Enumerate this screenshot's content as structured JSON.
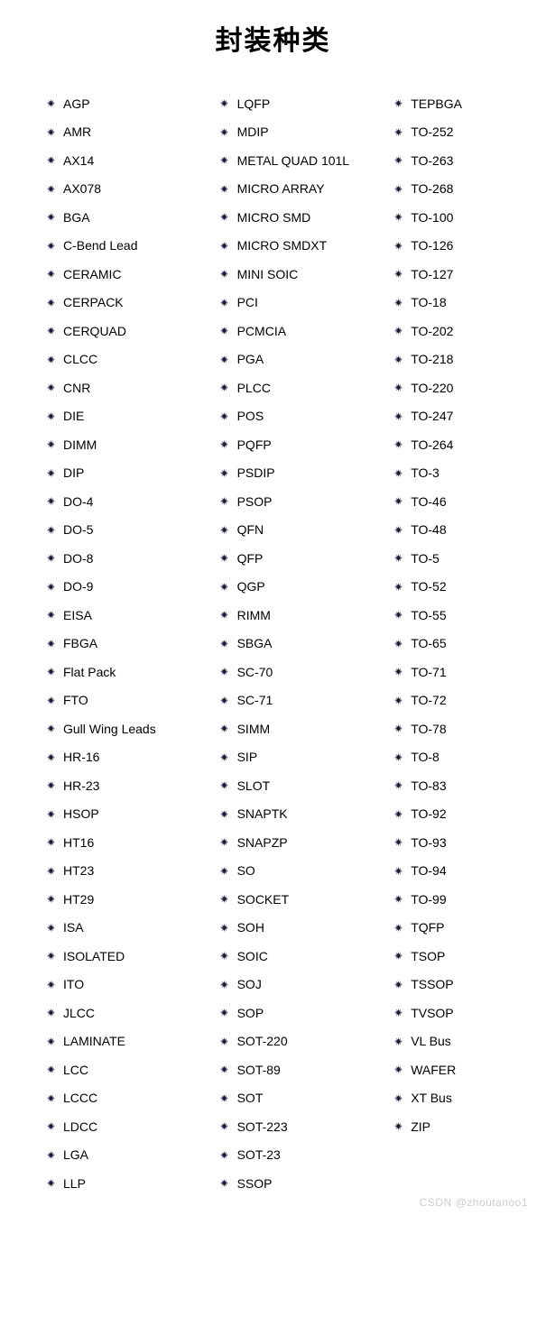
{
  "title": "封装种类",
  "title_fontsize": 30,
  "title_color": "#000000",
  "background_color": "#ffffff",
  "text_color": "#000000",
  "bullet_color": "#1a1b3a",
  "item_fontsize": 14,
  "row_height": 31.5,
  "columns": [
    {
      "items": [
        "AGP",
        "AMR",
        "AX14",
        "AX078",
        "BGA",
        "C-Bend Lead",
        "CERAMIC",
        "CERPACK",
        "CERQUAD",
        "CLCC",
        "CNR",
        "DIE",
        "DIMM",
        "DIP",
        "DO-4",
        "DO-5",
        "DO-8",
        "DO-9",
        "EISA",
        "FBGA",
        "Flat Pack",
        "FTO",
        "Gull Wing Leads",
        "HR-16",
        "HR-23",
        "HSOP",
        "HT16",
        "HT23",
        "HT29",
        "ISA",
        "ISOLATED",
        "ITO",
        "JLCC",
        "LAMINATE",
        "LCC",
        "LCCC",
        "LDCC",
        "LGA",
        "LLP"
      ]
    },
    {
      "items": [
        "LQFP",
        "MDIP",
        "METAL QUAD 101L",
        "MICRO ARRAY",
        "MICRO SMD",
        "MICRO SMDXT",
        "MINI SOIC",
        "PCI",
        "PCMCIA",
        "PGA",
        "PLCC",
        "POS",
        "PQFP",
        "PSDIP",
        "PSOP",
        "QFN",
        "QFP",
        "QGP",
        "RIMM",
        "SBGA",
        "SC-70",
        "SC-71",
        "SIMM",
        "SIP",
        "SLOT",
        "SNAPTK",
        "SNAPZP",
        "SO",
        "SOCKET",
        "SOH",
        "SOIC",
        "SOJ",
        "SOP",
        "SOT-220",
        "SOT-89",
        "SOT",
        "SOT-223",
        "SOT-23",
        "SSOP"
      ]
    },
    {
      "items": [
        "TEPBGA",
        "TO-252",
        "TO-263",
        "TO-268",
        "TO-100",
        "TO-126",
        "TO-127",
        "TO-18",
        "TO-202",
        "TO-218",
        "TO-220",
        "TO-247",
        "TO-264",
        "TO-3",
        "TO-46",
        "TO-48",
        "TO-5",
        "TO-52",
        "TO-55",
        "TO-65",
        "TO-71",
        "TO-72",
        "TO-78",
        "TO-8",
        "TO-83",
        "TO-92",
        "TO-93",
        "TO-94",
        "TO-99",
        "TQFP",
        "TSOP",
        "TSSOP",
        "TVSOP",
        "VL Bus",
        "WAFER",
        "XT Bus",
        "ZIP"
      ]
    }
  ],
  "watermark": "CSDN @zhoutanoo1",
  "watermark2": ""
}
